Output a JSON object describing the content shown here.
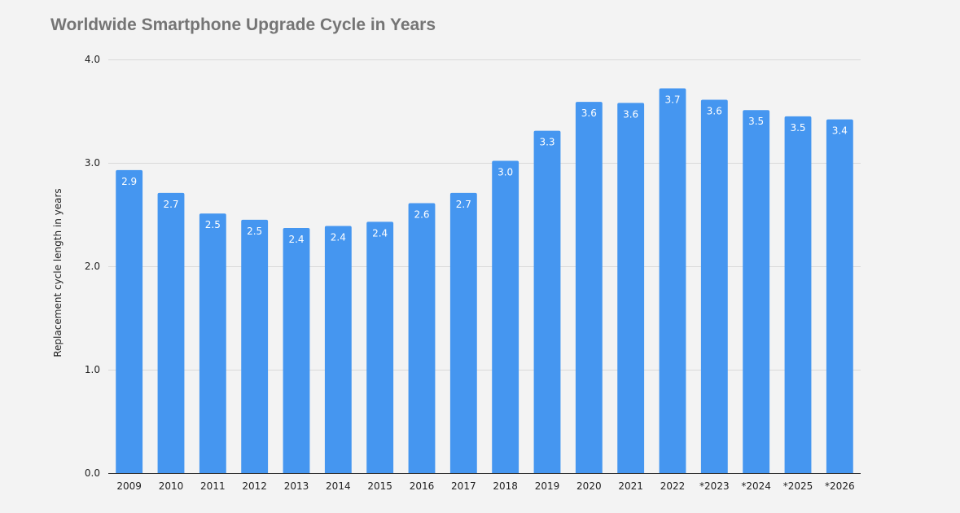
{
  "chart_data": {
    "type": "bar",
    "title": "Worldwide Smartphone Upgrade Cycle in Years",
    "xlabel": "",
    "ylabel": "Replacement cycle length in years",
    "categories": [
      "2009",
      "2010",
      "2011",
      "2012",
      "2013",
      "2014",
      "2015",
      "2016",
      "2017",
      "2018",
      "2019",
      "2020",
      "2021",
      "2022",
      "*2023",
      "*2024",
      "*2025",
      "*2026"
    ],
    "values": [
      2.93,
      2.71,
      2.51,
      2.45,
      2.37,
      2.39,
      2.43,
      2.61,
      2.71,
      3.02,
      3.31,
      3.59,
      3.58,
      3.72,
      3.61,
      3.51,
      3.45,
      3.42
    ],
    "data_labels": [
      "2.9",
      "2.7",
      "2.5",
      "2.5",
      "2.4",
      "2.4",
      "2.4",
      "2.6",
      "2.7",
      "3.0",
      "3.3",
      "3.6",
      "3.6",
      "3.7",
      "3.6",
      "3.5",
      "3.5",
      "3.4"
    ],
    "ylim": [
      0,
      4
    ],
    "yticks": [
      "0.0",
      "1.0",
      "2.0",
      "3.0",
      "4.0"
    ],
    "grid": true,
    "legend": "none",
    "bar_color": "#4596f0"
  }
}
